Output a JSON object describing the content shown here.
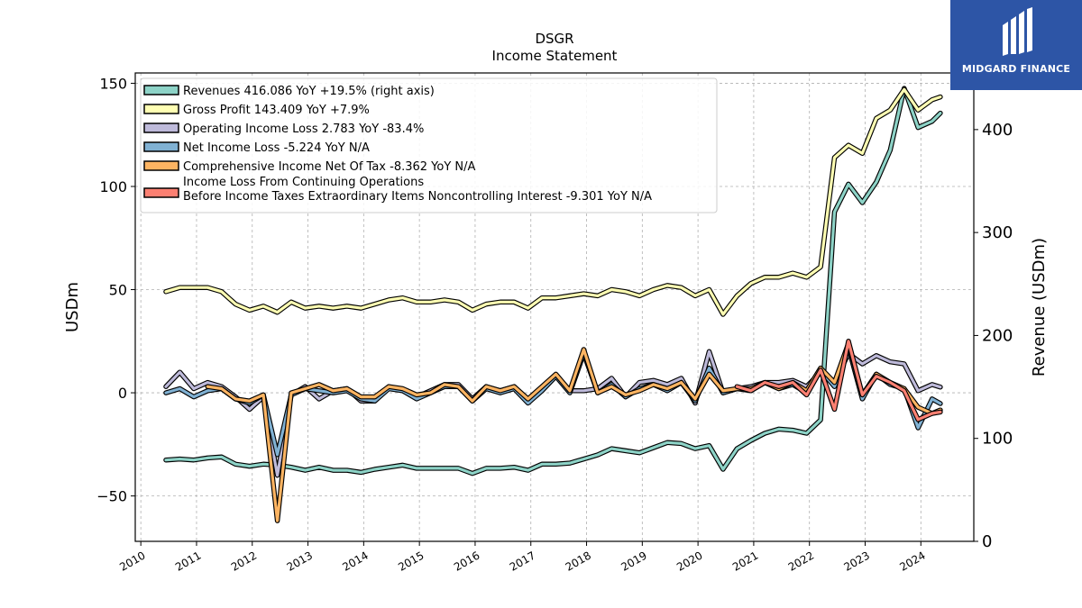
{
  "chart_data": {
    "type": "line",
    "title": "DSGR",
    "subtitle": "Income Statement",
    "ylabel": "USDm",
    "ylabel_right": "Revenue (USDm)",
    "ylim": [
      -72,
      155
    ],
    "ylim_right": [
      0,
      455
    ],
    "yticks": [
      -50,
      0,
      50,
      100,
      150
    ],
    "yticks_right": [
      0,
      100,
      200,
      300,
      400
    ],
    "xlim": [
      2009.9,
      2024.95
    ],
    "xticks": [
      "2010",
      "2011",
      "2012",
      "2013",
      "2014",
      "2015",
      "2016",
      "2017",
      "2018",
      "2019",
      "2020",
      "2021",
      "2022",
      "2023",
      "2024"
    ],
    "grid": true,
    "legend_position": "top-left",
    "series": [
      {
        "name": "Revenues  416.086 YoY +19.5% (right axis)",
        "color": "#8dd3c7",
        "axis": "right",
        "points": [
          [
            2010.45,
            79
          ],
          [
            2010.7,
            80
          ],
          [
            2010.95,
            79
          ],
          [
            2011.2,
            81
          ],
          [
            2011.45,
            82
          ],
          [
            2011.7,
            75
          ],
          [
            2011.95,
            73
          ],
          [
            2012.2,
            75
          ],
          [
            2012.45,
            74
          ],
          [
            2012.7,
            72
          ],
          [
            2012.95,
            69
          ],
          [
            2013.2,
            72
          ],
          [
            2013.45,
            69
          ],
          [
            2013.7,
            69
          ],
          [
            2013.95,
            67
          ],
          [
            2014.2,
            70
          ],
          [
            2014.45,
            72
          ],
          [
            2014.7,
            74
          ],
          [
            2014.95,
            71
          ],
          [
            2015.2,
            71
          ],
          [
            2015.45,
            71
          ],
          [
            2015.7,
            71
          ],
          [
            2015.95,
            66
          ],
          [
            2016.2,
            71
          ],
          [
            2016.45,
            71
          ],
          [
            2016.7,
            72
          ],
          [
            2016.95,
            69
          ],
          [
            2017.2,
            75
          ],
          [
            2017.45,
            75
          ],
          [
            2017.7,
            76
          ],
          [
            2017.95,
            80
          ],
          [
            2018.2,
            84
          ],
          [
            2018.45,
            90
          ],
          [
            2018.7,
            88
          ],
          [
            2018.95,
            86
          ],
          [
            2019.2,
            91
          ],
          [
            2019.45,
            96
          ],
          [
            2019.7,
            95
          ],
          [
            2019.95,
            90
          ],
          [
            2020.2,
            93
          ],
          [
            2020.45,
            70
          ],
          [
            2020.7,
            90
          ],
          [
            2020.95,
            98
          ],
          [
            2021.2,
            105
          ],
          [
            2021.45,
            109
          ],
          [
            2021.7,
            108
          ],
          [
            2021.95,
            105
          ],
          [
            2022.2,
            118
          ],
          [
            2022.45,
            320
          ],
          [
            2022.7,
            347
          ],
          [
            2022.95,
            329
          ],
          [
            2023.2,
            349
          ],
          [
            2023.45,
            380
          ],
          [
            2023.7,
            440
          ],
          [
            2023.95,
            402
          ],
          [
            2024.2,
            408
          ],
          [
            2024.35,
            416
          ]
        ]
      },
      {
        "name": "Gross Profit  143.409 YoY +7.9%",
        "color": "#ffffb3",
        "axis": "left",
        "points": [
          [
            2010.45,
            49
          ],
          [
            2010.7,
            51
          ],
          [
            2010.95,
            51
          ],
          [
            2011.2,
            51
          ],
          [
            2011.45,
            49
          ],
          [
            2011.7,
            43
          ],
          [
            2011.95,
            40
          ],
          [
            2012.2,
            42
          ],
          [
            2012.45,
            39
          ],
          [
            2012.7,
            44
          ],
          [
            2012.95,
            41
          ],
          [
            2013.2,
            42
          ],
          [
            2013.45,
            41
          ],
          [
            2013.7,
            42
          ],
          [
            2013.95,
            41
          ],
          [
            2014.2,
            43
          ],
          [
            2014.45,
            45
          ],
          [
            2014.7,
            46
          ],
          [
            2014.95,
            44
          ],
          [
            2015.2,
            44
          ],
          [
            2015.45,
            45
          ],
          [
            2015.7,
            44
          ],
          [
            2015.95,
            40
          ],
          [
            2016.2,
            43
          ],
          [
            2016.45,
            44
          ],
          [
            2016.7,
            44
          ],
          [
            2016.95,
            41
          ],
          [
            2017.2,
            46
          ],
          [
            2017.45,
            46
          ],
          [
            2017.7,
            47
          ],
          [
            2017.95,
            48
          ],
          [
            2018.2,
            47
          ],
          [
            2018.45,
            50
          ],
          [
            2018.7,
            49
          ],
          [
            2018.95,
            47
          ],
          [
            2019.2,
            50
          ],
          [
            2019.45,
            52
          ],
          [
            2019.7,
            51
          ],
          [
            2019.95,
            47
          ],
          [
            2020.2,
            50
          ],
          [
            2020.45,
            38
          ],
          [
            2020.7,
            47
          ],
          [
            2020.95,
            53
          ],
          [
            2021.2,
            56
          ],
          [
            2021.45,
            56
          ],
          [
            2021.7,
            58
          ],
          [
            2021.95,
            56
          ],
          [
            2022.2,
            61
          ],
          [
            2022.45,
            114
          ],
          [
            2022.7,
            120
          ],
          [
            2022.95,
            116
          ],
          [
            2023.2,
            133
          ],
          [
            2023.45,
            137
          ],
          [
            2023.7,
            147
          ],
          [
            2023.95,
            137
          ],
          [
            2024.2,
            142
          ],
          [
            2024.35,
            143.409
          ]
        ]
      },
      {
        "name": "Operating Income Loss  2.783 YoY -83.4%",
        "color": "#bebada",
        "axis": "left",
        "points": [
          [
            2010.45,
            3
          ],
          [
            2010.7,
            10
          ],
          [
            2010.95,
            2
          ],
          [
            2011.2,
            5
          ],
          [
            2011.45,
            3
          ],
          [
            2011.7,
            -2
          ],
          [
            2011.95,
            -8
          ],
          [
            2012.2,
            -2
          ],
          [
            2012.45,
            -40
          ],
          [
            2012.7,
            -1
          ],
          [
            2012.95,
            3
          ],
          [
            2013.2,
            -3
          ],
          [
            2013.45,
            1
          ],
          [
            2013.7,
            2
          ],
          [
            2013.95,
            -4
          ],
          [
            2014.2,
            -4
          ],
          [
            2014.45,
            3
          ],
          [
            2014.7,
            1
          ],
          [
            2014.95,
            -2
          ],
          [
            2015.2,
            1
          ],
          [
            2015.45,
            4
          ],
          [
            2015.7,
            4
          ],
          [
            2015.95,
            -3
          ],
          [
            2016.2,
            3
          ],
          [
            2016.45,
            1
          ],
          [
            2016.7,
            3
          ],
          [
            2016.95,
            -4
          ],
          [
            2017.2,
            2
          ],
          [
            2017.45,
            8
          ],
          [
            2017.7,
            1
          ],
          [
            2017.95,
            1
          ],
          [
            2018.2,
            2
          ],
          [
            2018.45,
            7
          ],
          [
            2018.7,
            -2
          ],
          [
            2018.95,
            5
          ],
          [
            2019.2,
            6
          ],
          [
            2019.45,
            4
          ],
          [
            2019.7,
            7
          ],
          [
            2019.95,
            -5
          ],
          [
            2020.2,
            20
          ],
          [
            2020.45,
            0
          ],
          [
            2020.7,
            2
          ],
          [
            2020.95,
            3
          ],
          [
            2021.2,
            5
          ],
          [
            2021.45,
            5
          ],
          [
            2021.7,
            6
          ],
          [
            2021.95,
            3
          ],
          [
            2022.2,
            10
          ],
          [
            2022.45,
            5
          ],
          [
            2022.7,
            19
          ],
          [
            2022.95,
            14
          ],
          [
            2023.2,
            18
          ],
          [
            2023.45,
            15
          ],
          [
            2023.7,
            14
          ],
          [
            2023.95,
            1
          ],
          [
            2024.2,
            4
          ],
          [
            2024.35,
            2.783
          ]
        ]
      },
      {
        "name": "Net Income Loss  -5.224 YoY N/A",
        "color": "#80b1d3",
        "axis": "left",
        "points": [
          [
            2010.45,
            0
          ],
          [
            2010.7,
            2
          ],
          [
            2010.95,
            -2
          ],
          [
            2011.2,
            1
          ],
          [
            2011.45,
            2
          ],
          [
            2011.7,
            -3
          ],
          [
            2011.95,
            -5
          ],
          [
            2012.2,
            -1
          ],
          [
            2012.45,
            -30
          ],
          [
            2012.7,
            -1
          ],
          [
            2012.95,
            2
          ],
          [
            2013.2,
            1
          ],
          [
            2013.45,
            0
          ],
          [
            2013.7,
            1
          ],
          [
            2013.95,
            -3
          ],
          [
            2014.2,
            -4
          ],
          [
            2014.45,
            2
          ],
          [
            2014.7,
            1
          ],
          [
            2014.95,
            -3
          ],
          [
            2015.2,
            0
          ],
          [
            2015.45,
            3
          ],
          [
            2015.7,
            3
          ],
          [
            2015.95,
            -4
          ],
          [
            2016.2,
            2
          ],
          [
            2016.45,
            0
          ],
          [
            2016.7,
            2
          ],
          [
            2016.95,
            -5
          ],
          [
            2017.2,
            1
          ],
          [
            2017.45,
            8
          ],
          [
            2017.7,
            0
          ],
          [
            2017.95,
            19
          ],
          [
            2018.2,
            0
          ],
          [
            2018.45,
            4
          ],
          [
            2018.7,
            -2
          ],
          [
            2018.95,
            2
          ],
          [
            2019.2,
            4
          ],
          [
            2019.45,
            1
          ],
          [
            2019.7,
            5
          ],
          [
            2019.95,
            -4
          ],
          [
            2020.2,
            12
          ],
          [
            2020.45,
            0
          ],
          [
            2020.7,
            2
          ],
          [
            2020.95,
            1
          ],
          [
            2021.2,
            5
          ],
          [
            2021.45,
            2
          ],
          [
            2021.7,
            4
          ],
          [
            2021.95,
            0
          ],
          [
            2022.2,
            11
          ],
          [
            2022.45,
            3
          ],
          [
            2022.7,
            22
          ],
          [
            2022.95,
            -3
          ],
          [
            2023.2,
            9
          ],
          [
            2023.45,
            4
          ],
          [
            2023.7,
            2
          ],
          [
            2023.95,
            -17
          ],
          [
            2024.2,
            -3
          ],
          [
            2024.35,
            -5.224
          ]
        ]
      },
      {
        "name": "Comprehensive Income Net Of Tax  -8.362 YoY N/A",
        "color": "#fdb462",
        "axis": "left",
        "points": [
          [
            2011.2,
            3
          ],
          [
            2011.45,
            2
          ],
          [
            2011.7,
            -3
          ],
          [
            2011.95,
            -4
          ],
          [
            2012.2,
            -1
          ],
          [
            2012.45,
            -62
          ],
          [
            2012.7,
            0
          ],
          [
            2012.95,
            2
          ],
          [
            2013.2,
            4
          ],
          [
            2013.45,
            1
          ],
          [
            2013.7,
            2
          ],
          [
            2013.95,
            -2
          ],
          [
            2014.2,
            -2
          ],
          [
            2014.45,
            3
          ],
          [
            2014.7,
            2
          ],
          [
            2014.95,
            -1
          ],
          [
            2015.2,
            0
          ],
          [
            2015.45,
            4
          ],
          [
            2015.7,
            3
          ],
          [
            2015.95,
            -4
          ],
          [
            2016.2,
            3
          ],
          [
            2016.45,
            1
          ],
          [
            2016.7,
            3
          ],
          [
            2016.95,
            -3
          ],
          [
            2017.2,
            3
          ],
          [
            2017.45,
            9
          ],
          [
            2017.7,
            1
          ],
          [
            2017.95,
            21
          ],
          [
            2018.2,
            0
          ],
          [
            2018.45,
            3
          ],
          [
            2018.7,
            -1
          ],
          [
            2018.95,
            1
          ],
          [
            2019.2,
            4
          ],
          [
            2019.45,
            2
          ],
          [
            2019.7,
            5
          ],
          [
            2019.95,
            -3
          ],
          [
            2020.2,
            9
          ],
          [
            2020.45,
            1
          ],
          [
            2020.7,
            2
          ],
          [
            2020.95,
            2
          ],
          [
            2021.2,
            5
          ],
          [
            2021.45,
            2
          ],
          [
            2021.7,
            5
          ],
          [
            2021.95,
            1
          ],
          [
            2022.2,
            12
          ],
          [
            2022.45,
            5
          ],
          [
            2022.7,
            24
          ],
          [
            2022.95,
            -1
          ],
          [
            2023.2,
            9
          ],
          [
            2023.45,
            5
          ],
          [
            2023.7,
            2
          ],
          [
            2023.95,
            -7
          ],
          [
            2024.2,
            -10
          ],
          [
            2024.35,
            -8.362
          ]
        ]
      },
      {
        "name": "Income Loss From Continuing Operations\nBefore Income Taxes Extraordinary Items Noncontrolling Interest  -9.301 YoY N/A",
        "color": "#fb8072",
        "axis": "left",
        "points": [
          [
            2020.7,
            3
          ],
          [
            2020.95,
            1
          ],
          [
            2021.2,
            5
          ],
          [
            2021.45,
            3
          ],
          [
            2021.7,
            5
          ],
          [
            2021.95,
            -1
          ],
          [
            2022.2,
            11
          ],
          [
            2022.45,
            -8
          ],
          [
            2022.7,
            25
          ],
          [
            2022.95,
            -1
          ],
          [
            2023.2,
            8
          ],
          [
            2023.45,
            5
          ],
          [
            2023.7,
            1
          ],
          [
            2023.95,
            -13
          ],
          [
            2024.2,
            -10
          ],
          [
            2024.35,
            -9.301
          ]
        ]
      }
    ]
  },
  "logo": {
    "text": "MIDGARD FINANCE"
  }
}
